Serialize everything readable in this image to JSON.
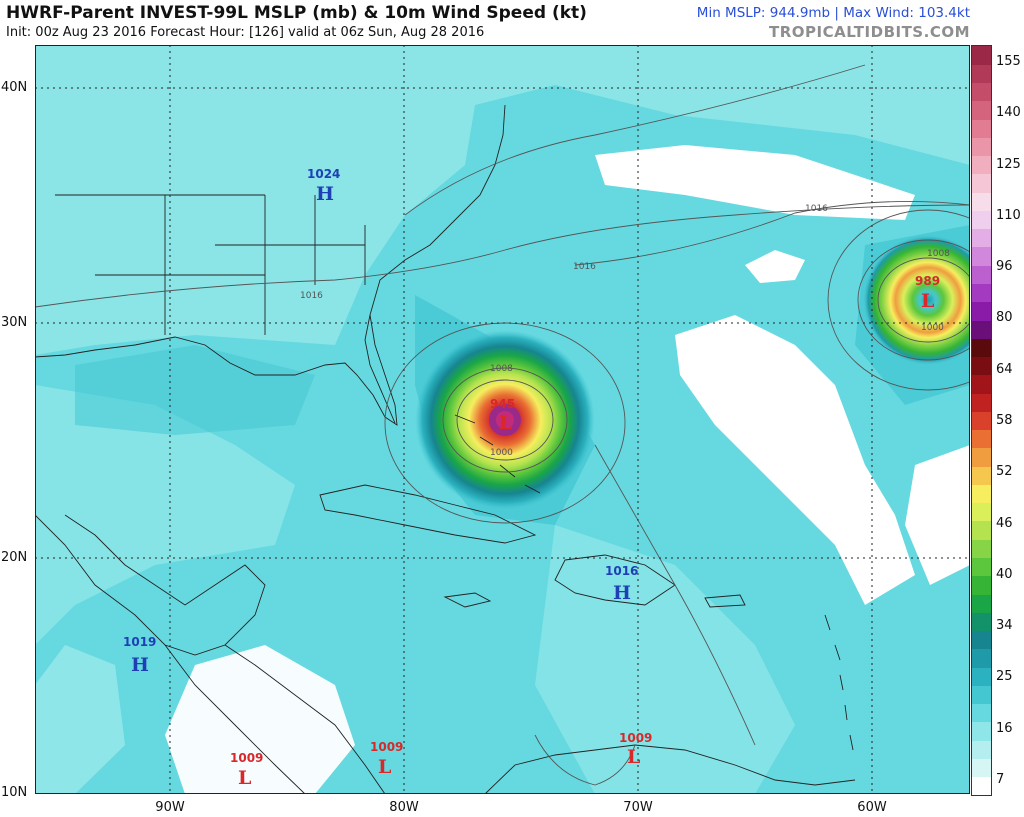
{
  "header": {
    "title": "HWRF-Parent INVEST-99L MSLP (mb) & 10m Wind Speed (kt)",
    "subtitle": "Init: 00z Aug 23 2016   Forecast Hour: [126]   valid at 06z Sun, Aug 28 2016",
    "stats": "Min MSLP: 944.9mb | Max Wind: 103.4kt",
    "brand": "TROPICALTIDBITS.COM"
  },
  "axes": {
    "lat_labels": [
      "40N",
      "30N",
      "20N",
      "10N"
    ],
    "lon_labels": [
      "90W",
      "80W",
      "70W",
      "60W"
    ]
  },
  "colorbar": {
    "labels": [
      "155",
      "140",
      "125",
      "110",
      "96",
      "80",
      "64",
      "58",
      "52",
      "46",
      "40",
      "34",
      "25",
      "16",
      "7"
    ],
    "colors": [
      "#ffffff",
      "#d6f5f5",
      "#b4eeee",
      "#8fe6e8",
      "#66d9e0",
      "#45c7d2",
      "#2bb1bf",
      "#1f9aa8",
      "#168590",
      "#13926a",
      "#1aa647",
      "#35b435",
      "#5cc63c",
      "#87d446",
      "#b4e34f",
      "#dbef5b",
      "#f6ee5e",
      "#f5c74e",
      "#f09d3f",
      "#e96f33",
      "#d9412b",
      "#c02221",
      "#a0141a",
      "#7a0d12",
      "#5a0a0c",
      "#6a0f7a",
      "#8a1aa8",
      "#a43ac0",
      "#bc60d0",
      "#d187dc",
      "#e3aee6",
      "#f0cfee",
      "#f7dcea",
      "#f5c7d6",
      "#f1aebf",
      "#eb95a9",
      "#e17c93",
      "#d4647e",
      "#c44e6a",
      "#b13a58",
      "#9c2848"
    ]
  },
  "pressure_labels": [
    {
      "type": "H",
      "value": "1024",
      "color": "#1f3fb5"
    },
    {
      "type": "H",
      "value": "1019",
      "color": "#1f3fb5"
    },
    {
      "type": "H",
      "value": "1016",
      "color": "#1f3fb5"
    },
    {
      "type": "L",
      "value": "945",
      "color": "#d8282a"
    },
    {
      "type": "L",
      "value": "989",
      "color": "#d8282a"
    },
    {
      "type": "L",
      "value": "1009",
      "color": "#d8282a"
    },
    {
      "type": "L",
      "value": "1009",
      "color": "#d8282a"
    },
    {
      "type": "L",
      "value": "1009",
      "color": "#d8282a"
    }
  ],
  "isobar_labels": [
    "1016",
    "1016",
    "1016",
    "1008",
    "1008",
    "1000",
    "1000"
  ]
}
